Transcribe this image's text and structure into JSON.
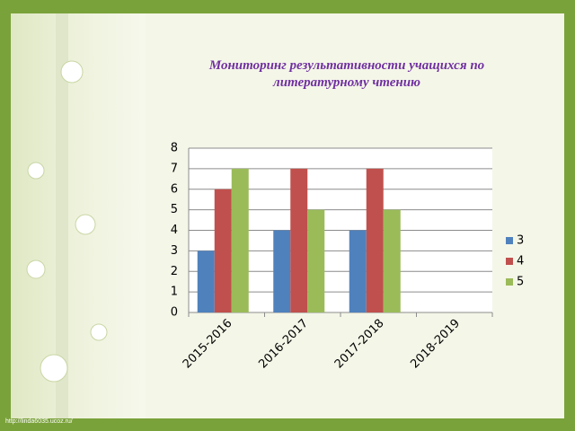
{
  "chart_data": {
    "type": "bar",
    "title": "Мониторинг результативности учащихся по литературному чтению",
    "categories": [
      "2015-2016",
      "2016-2017",
      "2017-2018",
      "2018-2019"
    ],
    "series": [
      {
        "name": "3",
        "color": "#4f81bd",
        "values": [
          3,
          4,
          4,
          null
        ]
      },
      {
        "name": "4",
        "color": "#c0504d",
        "values": [
          6,
          7,
          7,
          null
        ]
      },
      {
        "name": "5",
        "color": "#9bbb59",
        "values": [
          7,
          5,
          5,
          null
        ]
      }
    ],
    "ylim": [
      0,
      8
    ],
    "yticks": [
      0,
      1,
      2,
      3,
      4,
      5,
      6,
      7,
      8
    ],
    "grid": true,
    "legend": "right"
  },
  "watermark": "http://linda6035.ucoz.ru/"
}
